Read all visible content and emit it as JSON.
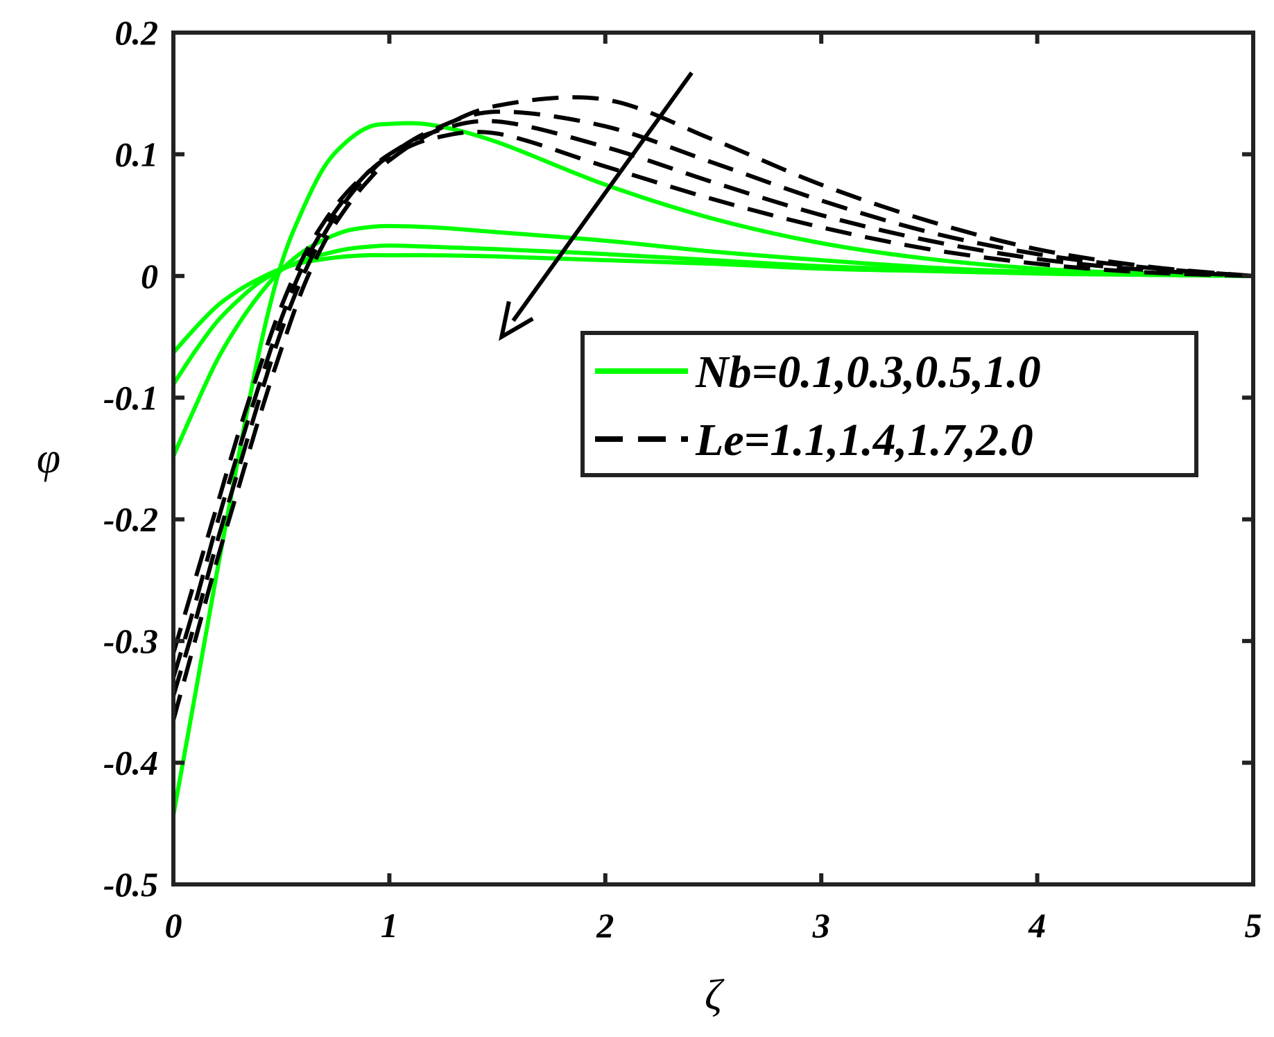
{
  "chart_data": {
    "type": "line",
    "xlabel": "ζ",
    "ylabel": "φ",
    "xlim": [
      0,
      5
    ],
    "ylim": [
      -0.5,
      0.2
    ],
    "xticks": [
      0,
      1,
      2,
      3,
      4,
      5
    ],
    "xtick_labels": [
      "0",
      "1",
      "2",
      "3",
      "4",
      "5"
    ],
    "yticks": [
      0.2,
      0.1,
      0,
      -0.1,
      -0.2,
      -0.3,
      -0.4,
      -0.5
    ],
    "ytick_labels": [
      "0.2",
      "0.1",
      "0",
      "-0.1",
      "-0.2",
      "-0.3",
      "-0.4",
      "-0.5"
    ],
    "grid": false,
    "legend_position": "right-middle",
    "legend": [
      {
        "label": "Nb=0.1,0.3,0.5,1.0",
        "color": "#00ff00",
        "style": "solid"
      },
      {
        "label": "Le=1.1,1.4,1.7,2.0",
        "color": "#000000",
        "style": "dashed"
      }
    ],
    "annotation": {
      "type": "arrow",
      "from": [
        2.4,
        0.167
      ],
      "to": [
        1.52,
        -0.05
      ]
    },
    "series": [
      {
        "group": "Nb",
        "color": "#00ff00",
        "style": "solid",
        "x": [
          0,
          0.1,
          0.2,
          0.3,
          0.4,
          0.5,
          0.6,
          0.7,
          0.8,
          0.9,
          1.0,
          1.2,
          1.5,
          2.0,
          2.5,
          3.0,
          3.5,
          4.0,
          4.5,
          5.0
        ],
        "y": [
          -0.443,
          -0.345,
          -0.245,
          -0.15,
          -0.06,
          0.01,
          0.055,
          0.09,
          0.11,
          0.122,
          0.125,
          0.124,
          0.11,
          0.075,
          0.047,
          0.027,
          0.014,
          0.006,
          0.002,
          0
        ]
      },
      {
        "group": "Nb",
        "color": "#00ff00",
        "style": "solid",
        "x": [
          0,
          0.1,
          0.2,
          0.3,
          0.4,
          0.5,
          0.6,
          0.7,
          0.8,
          0.9,
          1.0,
          1.2,
          1.5,
          2.0,
          2.5,
          3.0,
          3.5,
          4.0,
          4.5,
          5.0
        ],
        "y": [
          -0.148,
          -0.108,
          -0.07,
          -0.04,
          -0.015,
          0.005,
          0.02,
          0.03,
          0.037,
          0.04,
          0.041,
          0.04,
          0.036,
          0.029,
          0.02,
          0.013,
          0.007,
          0.003,
          0.001,
          0
        ]
      },
      {
        "group": "Nb",
        "color": "#00ff00",
        "style": "solid",
        "x": [
          0,
          0.1,
          0.2,
          0.3,
          0.4,
          0.5,
          0.6,
          0.7,
          0.8,
          0.9,
          1.0,
          1.2,
          1.5,
          2.0,
          2.5,
          3.0,
          3.5,
          4.0,
          4.5,
          5.0
        ],
        "y": [
          -0.089,
          -0.062,
          -0.038,
          -0.02,
          -0.005,
          0.005,
          0.013,
          0.018,
          0.022,
          0.024,
          0.025,
          0.024,
          0.022,
          0.018,
          0.013,
          0.008,
          0.005,
          0.002,
          0.001,
          0
        ]
      },
      {
        "group": "Nb",
        "color": "#00ff00",
        "style": "solid",
        "x": [
          0,
          0.1,
          0.2,
          0.3,
          0.4,
          0.5,
          0.6,
          0.7,
          0.8,
          0.9,
          1.0,
          1.2,
          1.5,
          2.0,
          2.5,
          3.0,
          3.5,
          4.0,
          4.5,
          5.0
        ],
        "y": [
          -0.063,
          -0.043,
          -0.025,
          -0.012,
          -0.002,
          0.006,
          0.011,
          0.014,
          0.016,
          0.017,
          0.017,
          0.017,
          0.016,
          0.013,
          0.01,
          0.006,
          0.004,
          0.002,
          0.001,
          0
        ]
      },
      {
        "group": "Le",
        "color": "#000000",
        "style": "dashed",
        "x": [
          0,
          0.1,
          0.2,
          0.3,
          0.4,
          0.5,
          0.6,
          0.7,
          0.8,
          0.9,
          1.0,
          1.2,
          1.5,
          2.0,
          2.5,
          3.0,
          3.5,
          4.0,
          4.5,
          5.0
        ],
        "y": [
          -0.31,
          -0.25,
          -0.19,
          -0.13,
          -0.075,
          -0.025,
          0.015,
          0.045,
          0.068,
          0.085,
          0.098,
          0.113,
          0.117,
          0.09,
          0.063,
          0.04,
          0.022,
          0.01,
          0.003,
          0
        ]
      },
      {
        "group": "Le",
        "color": "#000000",
        "style": "dashed",
        "x": [
          0,
          0.1,
          0.2,
          0.3,
          0.4,
          0.5,
          0.6,
          0.7,
          0.8,
          0.9,
          1.0,
          1.2,
          1.5,
          2.0,
          2.5,
          3.0,
          3.5,
          4.0,
          4.5,
          5.0
        ],
        "y": [
          -0.33,
          -0.27,
          -0.205,
          -0.145,
          -0.088,
          -0.035,
          0.008,
          0.04,
          0.065,
          0.085,
          0.1,
          0.118,
          0.127,
          0.106,
          0.077,
          0.05,
          0.029,
          0.014,
          0.005,
          0
        ]
      },
      {
        "group": "Le",
        "color": "#000000",
        "style": "dashed",
        "x": [
          0,
          0.1,
          0.2,
          0.3,
          0.4,
          0.5,
          0.6,
          0.7,
          0.8,
          0.9,
          1.0,
          1.2,
          1.5,
          2.0,
          2.5,
          3.0,
          3.5,
          4.0,
          4.5,
          5.0
        ],
        "y": [
          -0.345,
          -0.285,
          -0.22,
          -0.16,
          -0.1,
          -0.045,
          0.0,
          0.035,
          0.062,
          0.083,
          0.099,
          0.12,
          0.135,
          0.123,
          0.093,
          0.062,
          0.036,
          0.018,
          0.007,
          0
        ]
      },
      {
        "group": "Le",
        "color": "#000000",
        "style": "dashed",
        "x": [
          0,
          0.1,
          0.2,
          0.3,
          0.4,
          0.5,
          0.6,
          0.7,
          0.8,
          0.9,
          1.0,
          1.2,
          1.5,
          2.0,
          2.5,
          3.0,
          3.5,
          4.0,
          4.5,
          5.0
        ],
        "y": [
          -0.365,
          -0.3,
          -0.235,
          -0.175,
          -0.115,
          -0.06,
          -0.01,
          0.028,
          0.056,
          0.078,
          0.095,
          0.118,
          0.14,
          0.145,
          0.112,
          0.075,
          0.045,
          0.022,
          0.008,
          0
        ]
      }
    ]
  }
}
